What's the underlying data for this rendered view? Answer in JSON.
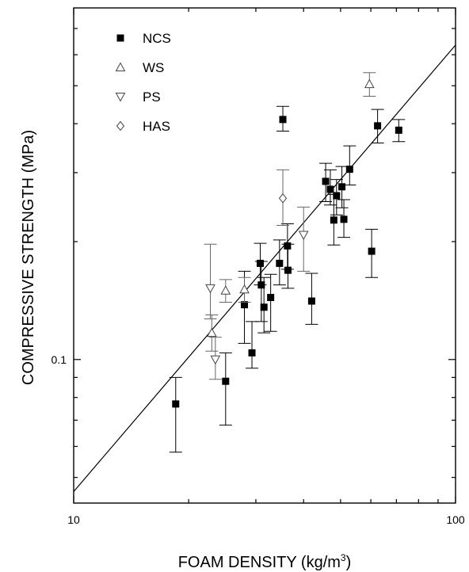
{
  "chart_data": {
    "type": "scatter",
    "title": "",
    "xlabel": "FOAM DENSITY (kg/m",
    "xlabel_sup": "3",
    "xlabel_close": ")",
    "ylabel": "COMPRESSIVE STRENGTH (MPa)",
    "x_scale": "log",
    "y_scale": "log",
    "xlim": [
      10,
      100
    ],
    "ylim": [
      0.043,
      0.79
    ],
    "x_ticks": [
      {
        "value": 10,
        "label": "10"
      },
      {
        "value": 100,
        "label": "100"
      }
    ],
    "y_ticks": [
      {
        "value": 0.1,
        "label": "0.1"
      }
    ],
    "legend_position": "top-left",
    "series": [
      {
        "name": "NCS",
        "marker": "filled-square",
        "points": [
          {
            "x": 18.5,
            "y": 0.077,
            "lo": 0.058,
            "hi": 0.09
          },
          {
            "x": 25.0,
            "y": 0.088,
            "lo": 0.068,
            "hi": 0.104
          },
          {
            "x": 28.0,
            "y": 0.138,
            "lo": 0.11,
            "hi": 0.168
          },
          {
            "x": 29.3,
            "y": 0.104,
            "lo": 0.095,
            "hi": 0.125
          },
          {
            "x": 30.8,
            "y": 0.176,
            "lo": 0.155,
            "hi": 0.198
          },
          {
            "x": 31.0,
            "y": 0.155,
            "lo": 0.125,
            "hi": 0.178
          },
          {
            "x": 31.5,
            "y": 0.136,
            "lo": 0.117,
            "hi": 0.162
          },
          {
            "x": 32.8,
            "y": 0.144,
            "lo": 0.118,
            "hi": 0.165
          },
          {
            "x": 34.6,
            "y": 0.176,
            "lo": 0.155,
            "hi": 0.202
          },
          {
            "x": 35.3,
            "y": 0.41,
            "lo": 0.383,
            "hi": 0.443
          },
          {
            "x": 36.3,
            "y": 0.195,
            "lo": 0.17,
            "hi": 0.222
          },
          {
            "x": 36.4,
            "y": 0.169,
            "lo": 0.152,
            "hi": 0.197
          },
          {
            "x": 42.0,
            "y": 0.141,
            "lo": 0.123,
            "hi": 0.166
          },
          {
            "x": 45.7,
            "y": 0.285,
            "lo": 0.253,
            "hi": 0.317
          },
          {
            "x": 47.0,
            "y": 0.272,
            "lo": 0.248,
            "hi": 0.305
          },
          {
            "x": 48.0,
            "y": 0.227,
            "lo": 0.196,
            "hi": 0.264
          },
          {
            "x": 48.8,
            "y": 0.262,
            "lo": 0.234,
            "hi": 0.288
          },
          {
            "x": 50.4,
            "y": 0.276,
            "lo": 0.244,
            "hi": 0.311
          },
          {
            "x": 51.0,
            "y": 0.228,
            "lo": 0.205,
            "hi": 0.256
          },
          {
            "x": 52.8,
            "y": 0.306,
            "lo": 0.279,
            "hi": 0.351
          },
          {
            "x": 60.3,
            "y": 0.189,
            "lo": 0.162,
            "hi": 0.215
          },
          {
            "x": 62.5,
            "y": 0.395,
            "lo": 0.357,
            "hi": 0.435
          },
          {
            "x": 71.0,
            "y": 0.385,
            "lo": 0.36,
            "hi": 0.41
          }
        ]
      },
      {
        "name": "WS",
        "marker": "open-triangle-up",
        "points": [
          {
            "x": 23.0,
            "y": 0.117,
            "lo": 0.105,
            "hi": 0.13
          },
          {
            "x": 25.0,
            "y": 0.15,
            "lo": 0.14,
            "hi": 0.16
          },
          {
            "x": 28.0,
            "y": 0.151,
            "lo": 0.14,
            "hi": 0.162
          },
          {
            "x": 59.5,
            "y": 0.505,
            "lo": 0.47,
            "hi": 0.54
          }
        ]
      },
      {
        "name": "PS",
        "marker": "open-triangle-down",
        "points": [
          {
            "x": 22.8,
            "y": 0.152,
            "lo": 0.127,
            "hi": 0.197
          },
          {
            "x": 23.5,
            "y": 0.1,
            "lo": 0.089,
            "hi": 0.114
          },
          {
            "x": 40.0,
            "y": 0.208,
            "lo": 0.168,
            "hi": 0.245
          }
        ]
      },
      {
        "name": "HAS",
        "marker": "open-diamond",
        "points": [
          {
            "x": 35.3,
            "y": 0.258,
            "lo": 0.22,
            "hi": 0.305
          }
        ]
      }
    ],
    "fit_line": {
      "x": [
        10,
        100
      ],
      "y": [
        0.046,
        0.635
      ]
    }
  }
}
